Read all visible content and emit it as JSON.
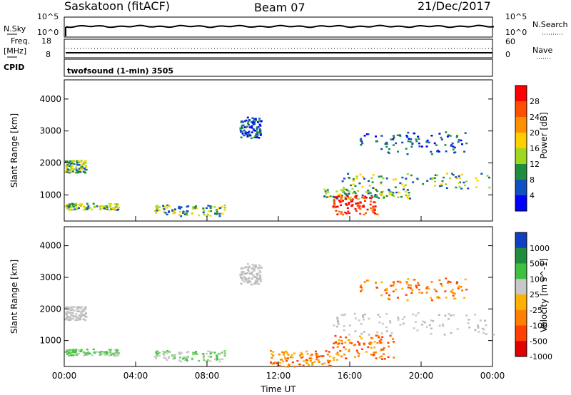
{
  "header": {
    "station": "Saskatoon (fitACF)",
    "beam": "Beam 07",
    "date": "21/Dec/2017"
  },
  "top_panels": {
    "nsky_label": "N.Sky",
    "nsearch_label": "N.Search",
    "noise_scale_top": "10^5",
    "noise_scale_bottom": "10^0",
    "freq_label": "Freq.",
    "freq_unit": "[MHz]",
    "freq_top": "18",
    "freq_bottom": "8",
    "nave_label": "Nave",
    "nave_top": "60",
    "nave_bottom": "0",
    "cpid_label": "CPID",
    "cpid_text": "twofsound (1-min) 3505"
  },
  "chart_data": [
    {
      "type": "heatmap",
      "quantity": "Power",
      "ylabel": "Slant Range [km]",
      "ylim": [
        180,
        4600
      ],
      "yticks": [
        1000,
        2000,
        3000,
        4000
      ],
      "colorbar_label": "Power [dB]",
      "colorbar_ticks": [
        "28",
        "24",
        "20",
        "16",
        "12",
        "8",
        "4"
      ],
      "colorbar_colors": [
        "#ff0000",
        "#ff5000",
        "#ff9000",
        "#ffd000",
        "#a0d820",
        "#208c40",
        "#1050c0",
        "#0000ff"
      ],
      "regions": [
        {
          "t0": 0.0,
          "t1": 1.2,
          "r0": 1700,
          "r1": 2100,
          "level": "medium"
        },
        {
          "t0": 0.0,
          "t1": 3.0,
          "r0": 550,
          "r1": 750,
          "level": "medium"
        },
        {
          "t0": 5.0,
          "t1": 9.0,
          "r0": 350,
          "r1": 700,
          "level": "medium"
        },
        {
          "t0": 9.8,
          "t1": 11.0,
          "r0": 2800,
          "r1": 3450,
          "level": "low"
        },
        {
          "t0": 14.5,
          "t1": 19.5,
          "r0": 900,
          "r1": 1200,
          "level": "medium"
        },
        {
          "t0": 15.0,
          "t1": 17.5,
          "r0": 400,
          "r1": 1000,
          "level": "high"
        },
        {
          "t0": 16.5,
          "t1": 22.5,
          "r0": 2300,
          "r1": 3000,
          "level": "low"
        },
        {
          "t0": 15.5,
          "t1": 24.0,
          "r0": 1200,
          "r1": 1700,
          "level": "medium"
        }
      ]
    },
    {
      "type": "heatmap",
      "quantity": "Velocity",
      "ylabel": "Slant Range [km]",
      "ylim": [
        180,
        4600
      ],
      "yticks": [
        1000,
        2000,
        3000,
        4000
      ],
      "xlabel": "Time UT",
      "xticks": [
        "00:00",
        "04:00",
        "08:00",
        "12:00",
        "16:00",
        "20:00",
        "00:00"
      ],
      "colorbar_label": "Velocity [m s^-1]",
      "colorbar_ticks": [
        "1000",
        "500",
        "100",
        "25",
        "-25",
        "-100",
        "-500",
        "-1000"
      ],
      "colorbar_colors": [
        "#1040c0",
        "#208c40",
        "#40c040",
        "#c8c8c8",
        "#ffb000",
        "#ff8000",
        "#ff4000",
        "#e00000"
      ],
      "regions": [
        {
          "t0": 0.0,
          "t1": 1.2,
          "r0": 1650,
          "r1": 2100,
          "level": "ground"
        },
        {
          "t0": 0.0,
          "t1": 3.0,
          "r0": 550,
          "r1": 750,
          "level": "positive"
        },
        {
          "t0": 5.0,
          "t1": 9.0,
          "r0": 350,
          "r1": 700,
          "level": "positive"
        },
        {
          "t0": 9.8,
          "t1": 11.0,
          "r0": 2800,
          "r1": 3450,
          "level": "ground"
        },
        {
          "t0": 11.5,
          "t1": 15.0,
          "r0": 200,
          "r1": 700,
          "level": "negative"
        },
        {
          "t0": 15.0,
          "t1": 24.0,
          "r0": 1200,
          "r1": 1900,
          "level": "ground"
        },
        {
          "t0": 16.5,
          "t1": 22.5,
          "r0": 2300,
          "r1": 3000,
          "level": "negative"
        },
        {
          "t0": 15.0,
          "t1": 18.5,
          "r0": 400,
          "r1": 1200,
          "level": "negative"
        }
      ]
    }
  ]
}
